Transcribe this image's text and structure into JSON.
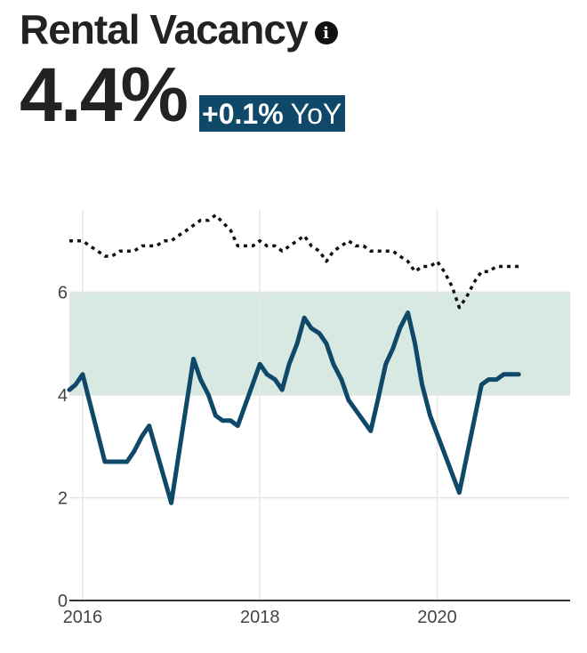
{
  "header": {
    "title": "Rental Vacancy",
    "value": "4.4%",
    "change": "+0.1%",
    "change_suffix": "YoY"
  },
  "colors": {
    "primary_line": "#0f4868",
    "reference_line": "#111111",
    "band": "#d7e9e1",
    "badge_bg": "#0f4868",
    "grid": "#e6e6e6"
  },
  "chart_data": {
    "type": "line",
    "x_ticks": [
      "2016",
      "2018",
      "2020"
    ],
    "y_ticks": [
      "0",
      "2",
      "4",
      "6"
    ],
    "xlim": [
      2015.85,
      2021.5
    ],
    "ylim": [
      0,
      7.6
    ],
    "band": [
      4,
      6
    ],
    "series": [
      {
        "style": "solid",
        "x": [
          2015.85,
          2015.92,
          2016.0,
          2016.25,
          2016.5,
          2016.58,
          2016.67,
          2016.75,
          2017.0,
          2017.25,
          2017.33,
          2017.42,
          2017.5,
          2017.58,
          2017.67,
          2017.75,
          2018.0,
          2018.08,
          2018.17,
          2018.25,
          2018.33,
          2018.42,
          2018.5,
          2018.58,
          2018.67,
          2018.75,
          2018.83,
          2018.92,
          2019.0,
          2019.25,
          2019.33,
          2019.42,
          2019.5,
          2019.58,
          2019.67,
          2019.75,
          2019.83,
          2019.92,
          2020.25,
          2020.5,
          2020.58,
          2020.67,
          2020.75,
          2020.92
        ],
        "y": [
          4.1,
          4.2,
          4.4,
          2.7,
          2.7,
          2.9,
          3.2,
          3.4,
          1.9,
          4.7,
          4.3,
          4.0,
          3.6,
          3.5,
          3.5,
          3.4,
          4.6,
          4.4,
          4.3,
          4.1,
          4.6,
          5.0,
          5.5,
          5.3,
          5.2,
          5.0,
          4.6,
          4.3,
          3.9,
          3.3,
          3.9,
          4.6,
          4.9,
          5.3,
          5.6,
          5.0,
          4.2,
          3.6,
          2.1,
          4.2,
          4.3,
          4.3,
          4.4,
          4.4
        ]
      },
      {
        "style": "dotted",
        "x": [
          2015.85,
          2016.0,
          2016.08,
          2016.17,
          2016.25,
          2016.33,
          2016.42,
          2016.5,
          2016.58,
          2016.67,
          2016.75,
          2016.83,
          2016.92,
          2017.0,
          2017.08,
          2017.17,
          2017.25,
          2017.33,
          2017.42,
          2017.5,
          2017.67,
          2017.75,
          2017.83,
          2017.92,
          2018.0,
          2018.08,
          2018.17,
          2018.25,
          2018.42,
          2018.5,
          2018.58,
          2018.67,
          2018.75,
          2018.83,
          2018.92,
          2019.0,
          2019.08,
          2019.17,
          2019.25,
          2019.33,
          2019.42,
          2019.5,
          2019.58,
          2019.67,
          2019.75,
          2019.83,
          2019.92,
          2020.0,
          2020.08,
          2020.17,
          2020.25,
          2020.33,
          2020.42,
          2020.5,
          2020.58,
          2020.67,
          2020.75,
          2020.92
        ],
        "y": [
          7.0,
          7.0,
          6.9,
          6.8,
          6.7,
          6.7,
          6.8,
          6.8,
          6.8,
          6.9,
          6.9,
          6.9,
          7.0,
          7.0,
          7.1,
          7.2,
          7.3,
          7.4,
          7.4,
          7.5,
          7.2,
          6.9,
          6.9,
          6.9,
          7.0,
          6.9,
          6.9,
          6.8,
          7.0,
          7.1,
          6.9,
          6.8,
          6.6,
          6.8,
          6.9,
          7.0,
          6.9,
          6.9,
          6.8,
          6.8,
          6.8,
          6.8,
          6.7,
          6.6,
          6.4,
          6.5,
          6.5,
          6.6,
          6.4,
          6.1,
          5.7,
          5.9,
          6.2,
          6.4,
          6.4,
          6.5,
          6.5,
          6.5
        ]
      }
    ]
  }
}
